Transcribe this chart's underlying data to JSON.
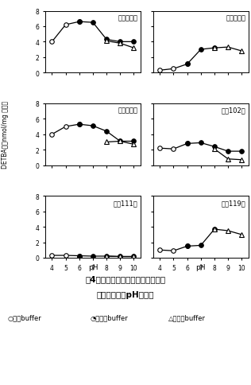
{
  "subplots": [
    {
      "title": "スズユタカ",
      "acetic": {
        "x": [
          4,
          5,
          6
        ],
        "y": [
          4.0,
          6.2,
          6.6
        ]
      },
      "phosphate": {
        "x": [
          6,
          7,
          8,
          9,
          10
        ],
        "y": [
          6.6,
          6.5,
          4.3,
          4.0,
          4.0
        ]
      },
      "borate": {
        "x": [
          8,
          9,
          10
        ],
        "y": [
          4.1,
          3.8,
          3.2
        ]
      }
    },
    {
      "title": "ゆめゆたか",
      "acetic": {
        "x": [
          4,
          5,
          6
        ],
        "y": [
          0.3,
          0.5,
          1.1
        ]
      },
      "phosphate": {
        "x": [
          6,
          7,
          8
        ],
        "y": [
          1.1,
          3.0,
          3.2
        ]
      },
      "borate": {
        "x": [
          8,
          9,
          10
        ],
        "y": [
          3.2,
          3.3,
          2.8
        ]
      }
    },
    {
      "title": "フクユタカ",
      "acetic": {
        "x": [
          4,
          5,
          6
        ],
        "y": [
          4.0,
          5.0,
          5.3
        ]
      },
      "phosphate": {
        "x": [
          6,
          7,
          8,
          9,
          10
        ],
        "y": [
          5.3,
          5.1,
          4.4,
          3.1,
          3.1
        ]
      },
      "borate": {
        "x": [
          8,
          9,
          10
        ],
        "y": [
          3.0,
          3.1,
          2.7
        ]
      }
    },
    {
      "title": "関東102号",
      "acetic": {
        "x": [
          4,
          5,
          6
        ],
        "y": [
          2.2,
          2.1,
          2.8
        ]
      },
      "phosphate": {
        "x": [
          6,
          7,
          8,
          9,
          10
        ],
        "y": [
          2.8,
          2.9,
          2.4,
          1.8,
          1.8
        ]
      },
      "borate": {
        "x": [
          8,
          9,
          10
        ],
        "y": [
          2.1,
          0.8,
          0.7
        ]
      }
    },
    {
      "title": "九州111号",
      "acetic": {
        "x": [
          4,
          5,
          6
        ],
        "y": [
          0.3,
          0.3,
          0.25
        ]
      },
      "phosphate": {
        "x": [
          6,
          7,
          8,
          9,
          10
        ],
        "y": [
          0.25,
          0.2,
          0.2,
          0.15,
          0.15
        ]
      },
      "borate": {
        "x": [
          8,
          9,
          10
        ],
        "y": [
          0.2,
          0.15,
          0.15
        ]
      }
    },
    {
      "title": "九州119号",
      "acetic": {
        "x": [
          4,
          5,
          6
        ],
        "y": [
          1.0,
          0.9,
          1.5
        ]
      },
      "phosphate": {
        "x": [
          6,
          7,
          8
        ],
        "y": [
          1.5,
          1.6,
          3.7
        ]
      },
      "borate": {
        "x": [
          8,
          9,
          10
        ],
        "y": [
          3.7,
          3.5,
          3.0
        ]
      }
    }
  ],
  "ylim": [
    0,
    8
  ],
  "yticks": [
    0,
    2,
    4,
    6,
    8
  ],
  "xlim": [
    3.5,
    10.5
  ],
  "xticks": [
    4,
    5,
    6,
    7,
    8,
    9,
    10
  ],
  "ylabel": "DETBA値（nmol/mg 蛋白）",
  "xlabel": "pH",
  "caption_line1": "図4．大豆抜出液とリノール酸との",
  "caption_line2": "反応に及ぼすpHの影響",
  "legend_acetic": "○酢酸buffer",
  "legend_phosphate": "◔リン酸buffer",
  "legend_borate": "△ホウ酸buffer"
}
